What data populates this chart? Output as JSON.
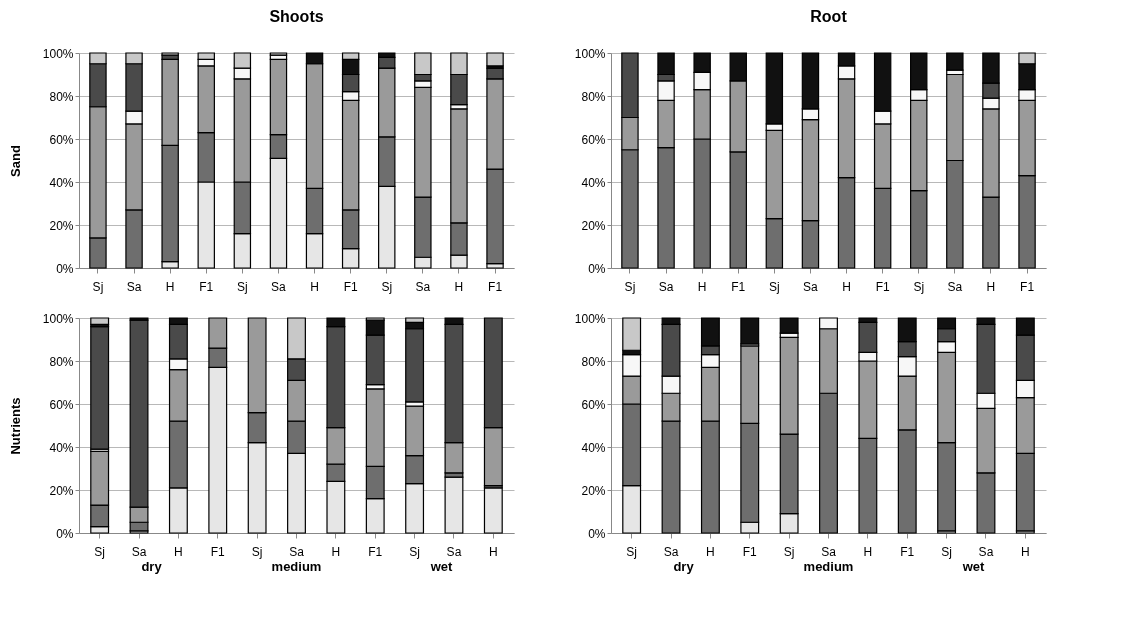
{
  "chart_data": [
    {
      "type": "bar",
      "title": "Shoots",
      "ylabel": "Sand",
      "stacked": true,
      "legend": false,
      "grid": "y",
      "ylim": [
        0,
        100
      ],
      "yticks": [
        {
          "value": 0,
          "label": "0%"
        },
        {
          "value": 20,
          "label": "20%"
        },
        {
          "value": 40,
          "label": "40%"
        },
        {
          "value": 60,
          "label": "60%"
        },
        {
          "value": 80,
          "label": "80%"
        },
        {
          "value": 100,
          "label": "100%"
        }
      ],
      "categories": [
        "Sj",
        "Sa",
        "H",
        "F1",
        "Sj",
        "Sa",
        "H",
        "F1",
        "Sj",
        "Sa",
        "H",
        "F1"
      ],
      "series": [
        {
          "color": "#e6e6e6",
          "values": [
            0,
            0,
            3,
            40,
            16,
            51,
            16,
            9,
            38,
            5,
            6,
            2
          ]
        },
        {
          "color": "#6e6e6e",
          "values": [
            14,
            27,
            54,
            23,
            24,
            11,
            21,
            18,
            23,
            28,
            15,
            44
          ]
        },
        {
          "color": "#9a9a9a",
          "values": [
            61,
            40,
            40,
            31,
            48,
            35,
            58,
            51,
            32,
            51,
            53,
            42
          ]
        },
        {
          "color": "#f7f7f7",
          "values": [
            0,
            6,
            0,
            3,
            5,
            2,
            0,
            4,
            0,
            3,
            2,
            0
          ]
        },
        {
          "color": "#4a4a4a",
          "values": [
            20,
            22,
            2,
            0,
            0,
            0,
            0,
            8,
            5,
            3,
            14,
            5
          ]
        },
        {
          "color": "#111111",
          "values": [
            0,
            0,
            0,
            0,
            0,
            0,
            5,
            7,
            2,
            0,
            0,
            1
          ]
        },
        {
          "color": "#c8c8c8",
          "values": [
            5,
            5,
            1,
            3,
            7,
            1,
            0,
            3,
            0,
            10,
            10,
            6
          ]
        }
      ]
    },
    {
      "type": "bar",
      "title": "Root",
      "stacked": true,
      "legend": false,
      "grid": "y",
      "ylim": [
        0,
        100
      ],
      "yticks": [
        {
          "value": 0,
          "label": "0%"
        },
        {
          "value": 20,
          "label": "20%"
        },
        {
          "value": 40,
          "label": "40%"
        },
        {
          "value": 60,
          "label": "60%"
        },
        {
          "value": 80,
          "label": "80%"
        },
        {
          "value": 100,
          "label": "100%"
        }
      ],
      "categories": [
        "Sj",
        "Sa",
        "H",
        "F1",
        "Sj",
        "Sa",
        "H",
        "F1",
        "Sj",
        "Sa",
        "H",
        "F1"
      ],
      "series": [
        {
          "color": "#e6e6e6",
          "values": [
            0,
            0,
            0,
            0,
            0,
            0,
            0,
            0,
            0,
            0,
            0,
            0
          ]
        },
        {
          "color": "#6e6e6e",
          "values": [
            55,
            56,
            60,
            54,
            23,
            22,
            42,
            37,
            36,
            50,
            33,
            43
          ]
        },
        {
          "color": "#9a9a9a",
          "values": [
            15,
            22,
            23,
            33,
            41,
            47,
            46,
            30,
            42,
            40,
            41,
            35
          ]
        },
        {
          "color": "#f7f7f7",
          "values": [
            0,
            9,
            8,
            0,
            3,
            5,
            6,
            6,
            5,
            2,
            5,
            5
          ]
        },
        {
          "color": "#4a4a4a",
          "values": [
            30,
            3,
            0,
            0,
            0,
            0,
            0,
            0,
            0,
            0,
            7,
            0
          ]
        },
        {
          "color": "#111111",
          "values": [
            0,
            10,
            9,
            13,
            33,
            26,
            6,
            27,
            17,
            8,
            14,
            12
          ]
        },
        {
          "color": "#c8c8c8",
          "values": [
            0,
            0,
            0,
            0,
            0,
            0,
            0,
            0,
            0,
            0,
            0,
            5
          ]
        }
      ]
    },
    {
      "type": "bar",
      "ylabel": "Nutrients",
      "stacked": true,
      "legend": false,
      "grid": "y",
      "ylim": [
        0,
        100
      ],
      "yticks": [
        {
          "value": 0,
          "label": "0%"
        },
        {
          "value": 20,
          "label": "20%"
        },
        {
          "value": 40,
          "label": "40%"
        },
        {
          "value": 60,
          "label": "60%"
        },
        {
          "value": 80,
          "label": "80%"
        },
        {
          "value": 100,
          "label": "100%"
        }
      ],
      "categories": [
        "Sj",
        "Sa",
        "H",
        "F1",
        "Sj",
        "Sa",
        "H",
        "F1",
        "Sj",
        "Sa",
        "H"
      ],
      "annotations": [
        "dry",
        "medium",
        "wet"
      ],
      "series": [
        {
          "color": "#e6e6e6",
          "values": [
            3,
            1,
            21,
            77,
            42,
            37,
            24,
            16,
            23,
            26,
            21
          ]
        },
        {
          "color": "#6e6e6e",
          "values": [
            10,
            4,
            31,
            9,
            14,
            15,
            8,
            15,
            13,
            2,
            1
          ]
        },
        {
          "color": "#9a9a9a",
          "values": [
            25,
            7,
            24,
            14,
            44,
            19,
            17,
            36,
            23,
            14,
            27
          ]
        },
        {
          "color": "#f7f7f7",
          "values": [
            1,
            0,
            5,
            0,
            0,
            0,
            0,
            2,
            2,
            0,
            0
          ]
        },
        {
          "color": "#4a4a4a",
          "values": [
            57,
            87,
            16,
            0,
            0,
            10,
            47,
            23,
            34,
            55,
            51
          ]
        },
        {
          "color": "#111111",
          "values": [
            1,
            1,
            3,
            0,
            0,
            0,
            4,
            7,
            3,
            3,
            0
          ]
        },
        {
          "color": "#c8c8c8",
          "values": [
            3,
            0,
            0,
            0,
            0,
            19,
            0,
            1,
            2,
            0,
            0
          ]
        }
      ]
    },
    {
      "type": "bar",
      "stacked": true,
      "legend": false,
      "grid": "y",
      "ylim": [
        0,
        100
      ],
      "yticks": [
        {
          "value": 0,
          "label": "0%"
        },
        {
          "value": 20,
          "label": "20%"
        },
        {
          "value": 40,
          "label": "40%"
        },
        {
          "value": 60,
          "label": "60%"
        },
        {
          "value": 80,
          "label": "80%"
        },
        {
          "value": 100,
          "label": "100%"
        }
      ],
      "categories": [
        "Sj",
        "Sa",
        "H",
        "F1",
        "Sj",
        "Sa",
        "H",
        "F1",
        "Sj",
        "Sa",
        "H"
      ],
      "annotations": [
        "dry",
        "medium",
        "wet"
      ],
      "series": [
        {
          "color": "#e6e6e6",
          "values": [
            22,
            0,
            0,
            5,
            9,
            0,
            0,
            0,
            1,
            0,
            1
          ]
        },
        {
          "color": "#6e6e6e",
          "values": [
            38,
            52,
            52,
            46,
            37,
            65,
            44,
            48,
            41,
            28,
            36
          ]
        },
        {
          "color": "#9a9a9a",
          "values": [
            13,
            13,
            25,
            36,
            45,
            30,
            36,
            25,
            42,
            30,
            26
          ]
        },
        {
          "color": "#f7f7f7",
          "values": [
            10,
            8,
            6,
            1,
            2,
            5,
            4,
            9,
            5,
            7,
            8
          ]
        },
        {
          "color": "#4a4a4a",
          "values": [
            0,
            24,
            4,
            0,
            0,
            0,
            14,
            7,
            6,
            32,
            21
          ]
        },
        {
          "color": "#111111",
          "values": [
            2,
            3,
            13,
            12,
            7,
            0,
            2,
            11,
            5,
            3,
            8
          ]
        },
        {
          "color": "#c8c8c8",
          "values": [
            15,
            0,
            0,
            0,
            0,
            0,
            0,
            0,
            0,
            0,
            0
          ]
        }
      ]
    }
  ]
}
